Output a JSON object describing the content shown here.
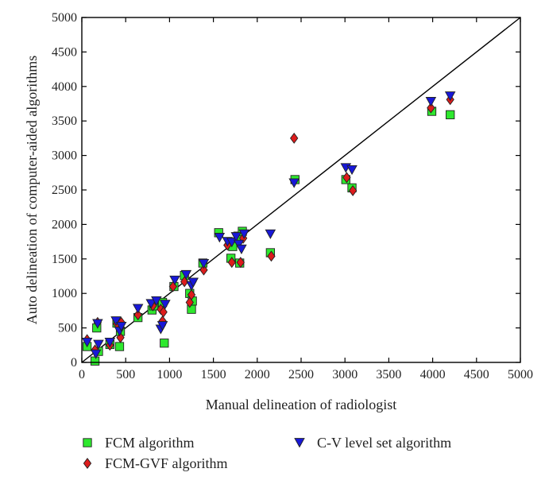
{
  "chart_data": {
    "type": "scatter",
    "xlabel": "Manual delineation of radiologist",
    "ylabel": "Auto delineation of computer-aided algorithms",
    "xlim": [
      0,
      5000
    ],
    "ylim": [
      0,
      5000
    ],
    "xticks": [
      "0",
      "500",
      "1000",
      "1500",
      "2000",
      "2500",
      "3000",
      "3500",
      "4000",
      "4500",
      "5000"
    ],
    "yticks": [
      "0",
      "500",
      "1000",
      "1500",
      "2000",
      "2500",
      "3000",
      "3500",
      "4000",
      "4500",
      "5000"
    ],
    "grid": false,
    "reference_line": {
      "from": [
        0,
        0
      ],
      "to": [
        5000,
        5000
      ]
    },
    "legend": "bottom",
    "series": [
      {
        "name": "FCM algorithm",
        "marker": "square",
        "color": "#2ee82e",
        "points": [
          [
            60,
            230
          ],
          [
            150,
            20
          ],
          [
            170,
            500
          ],
          [
            190,
            160
          ],
          [
            320,
            260
          ],
          [
            400,
            570
          ],
          [
            430,
            230
          ],
          [
            440,
            450
          ],
          [
            640,
            650
          ],
          [
            800,
            760
          ],
          [
            820,
            820
          ],
          [
            920,
            870
          ],
          [
            940,
            280
          ],
          [
            1050,
            1100
          ],
          [
            1170,
            1260
          ],
          [
            1230,
            1000
          ],
          [
            1250,
            770
          ],
          [
            1260,
            890
          ],
          [
            1380,
            1440
          ],
          [
            1560,
            1880
          ],
          [
            1700,
            1510
          ],
          [
            1720,
            1680
          ],
          [
            1780,
            1830
          ],
          [
            1800,
            1440
          ],
          [
            1830,
            1900
          ],
          [
            2150,
            1590
          ],
          [
            2430,
            2650
          ],
          [
            3010,
            2650
          ],
          [
            3080,
            2530
          ],
          [
            3990,
            3640
          ],
          [
            4200,
            3590
          ]
        ]
      },
      {
        "name": "FCM-GVF algorithm",
        "marker": "diamond",
        "color": "#dd1c1c",
        "points": [
          [
            60,
            330
          ],
          [
            150,
            180
          ],
          [
            180,
            580
          ],
          [
            320,
            250
          ],
          [
            400,
            560
          ],
          [
            440,
            360
          ],
          [
            450,
            580
          ],
          [
            640,
            690
          ],
          [
            810,
            820
          ],
          [
            900,
            770
          ],
          [
            920,
            600
          ],
          [
            930,
            730
          ],
          [
            1040,
            1100
          ],
          [
            1170,
            1170
          ],
          [
            1230,
            870
          ],
          [
            1250,
            980
          ],
          [
            1390,
            1340
          ],
          [
            1660,
            1700
          ],
          [
            1710,
            1450
          ],
          [
            1810,
            1450
          ],
          [
            1840,
            1800
          ],
          [
            2160,
            1540
          ],
          [
            2420,
            3250
          ],
          [
            3020,
            2680
          ],
          [
            3090,
            2490
          ],
          [
            3980,
            3690
          ],
          [
            4200,
            3810
          ]
        ]
      },
      {
        "name": "C-V level set algorithm",
        "marker": "triangle-down",
        "color": "#1818d8",
        "points": [
          [
            60,
            290
          ],
          [
            160,
            120
          ],
          [
            180,
            560
          ],
          [
            190,
            260
          ],
          [
            320,
            290
          ],
          [
            390,
            600
          ],
          [
            430,
            450
          ],
          [
            450,
            520
          ],
          [
            640,
            780
          ],
          [
            790,
            850
          ],
          [
            850,
            890
          ],
          [
            900,
            480
          ],
          [
            920,
            530
          ],
          [
            950,
            840
          ],
          [
            1060,
            1190
          ],
          [
            1190,
            1270
          ],
          [
            1250,
            1110
          ],
          [
            1270,
            1160
          ],
          [
            1390,
            1430
          ],
          [
            1570,
            1810
          ],
          [
            1660,
            1750
          ],
          [
            1710,
            1740
          ],
          [
            1760,
            1820
          ],
          [
            1790,
            1710
          ],
          [
            1820,
            1640
          ],
          [
            1850,
            1860
          ],
          [
            2150,
            1860
          ],
          [
            2420,
            2600
          ],
          [
            3010,
            2820
          ],
          [
            3080,
            2790
          ],
          [
            3980,
            3780
          ],
          [
            4200,
            3860
          ]
        ]
      }
    ]
  }
}
